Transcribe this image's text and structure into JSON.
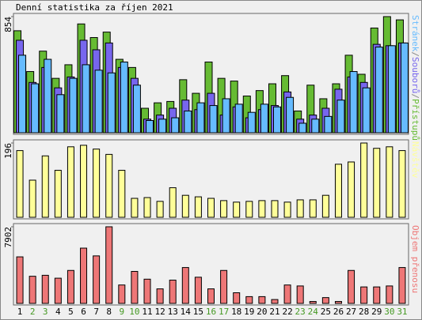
{
  "chart_data": [
    {
      "type": "bar",
      "title": "Denní statistika za říjen 2021",
      "ylim": [
        0,
        854
      ],
      "yticks": [
        854
      ],
      "legend_separator": "/",
      "series": [
        {
          "name": "Přístupů",
          "color": "#66bb33",
          "values": [
            750,
            450,
            600,
            400,
            500,
            800,
            700,
            740,
            540,
            480,
            180,
            220,
            230,
            390,
            290,
            520,
            400,
            380,
            270,
            310,
            360,
            420,
            160,
            350,
            250,
            360,
            570,
            430,
            770,
            854,
            830
          ]
        },
        {
          "name": "Souborů",
          "color": "#7766ee",
          "values": [
            680,
            370,
            480,
            330,
            410,
            680,
            610,
            660,
            480,
            400,
            100,
            130,
            180,
            240,
            170,
            290,
            130,
            190,
            110,
            170,
            200,
            300,
            100,
            130,
            180,
            320,
            410,
            370,
            650,
            640,
            660
          ]
        },
        {
          "name": "Stránek",
          "color": "#66bbff",
          "values": [
            570,
            360,
            540,
            280,
            400,
            500,
            460,
            440,
            520,
            350,
            90,
            100,
            110,
            160,
            220,
            200,
            250,
            210,
            150,
            210,
            190,
            260,
            70,
            100,
            120,
            240,
            450,
            330,
            630,
            640,
            660
          ]
        }
      ]
    },
    {
      "type": "bar",
      "ylim": [
        0,
        196
      ],
      "yticks": [
        196
      ],
      "series": [
        {
          "name": "Návštěv",
          "color": "#ffff99",
          "values": [
            176,
            98,
            162,
            124,
            186,
            190,
            180,
            166,
            124,
            50,
            52,
            42,
            78,
            58,
            54,
            50,
            44,
            40,
            42,
            44,
            44,
            40,
            46,
            46,
            58,
            140,
            146,
            196,
            182,
            186,
            176
          ]
        }
      ]
    },
    {
      "type": "bar",
      "ylim": [
        0,
        7902
      ],
      "yticks": [
        7902
      ],
      "categories": [
        "1",
        "2",
        "3",
        "4",
        "5",
        "6",
        "7",
        "8",
        "9",
        "10",
        "11",
        "12",
        "13",
        "14",
        "15",
        "16",
        "17",
        "18",
        "19",
        "20",
        "21",
        "22",
        "23",
        "24",
        "25",
        "26",
        "27",
        "28",
        "29",
        "30",
        "31"
      ],
      "category_colors": [
        "#000",
        "#449922",
        "#449922",
        "#000",
        "#000",
        "#000",
        "#000",
        "#000",
        "#449922",
        "#449922",
        "#000",
        "#000",
        "#000",
        "#000",
        "#000",
        "#449922",
        "#449922",
        "#000",
        "#000",
        "#000",
        "#000",
        "#000",
        "#449922",
        "#449922",
        "#000",
        "#000",
        "#000",
        "#000",
        "#000",
        "#449922",
        "#449922"
      ],
      "series": [
        {
          "name": "Objem přenosu",
          "color": "#ee7777",
          "values": [
            4800,
            2800,
            2900,
            2600,
            3400,
            5700,
            4900,
            7902,
            1900,
            3300,
            2500,
            1500,
            2400,
            3700,
            2700,
            1500,
            3400,
            1100,
            700,
            700,
            400,
            1900,
            1800,
            200,
            600,
            200,
            3400,
            1700,
            1700,
            1800,
            3700
          ]
        }
      ]
    }
  ]
}
